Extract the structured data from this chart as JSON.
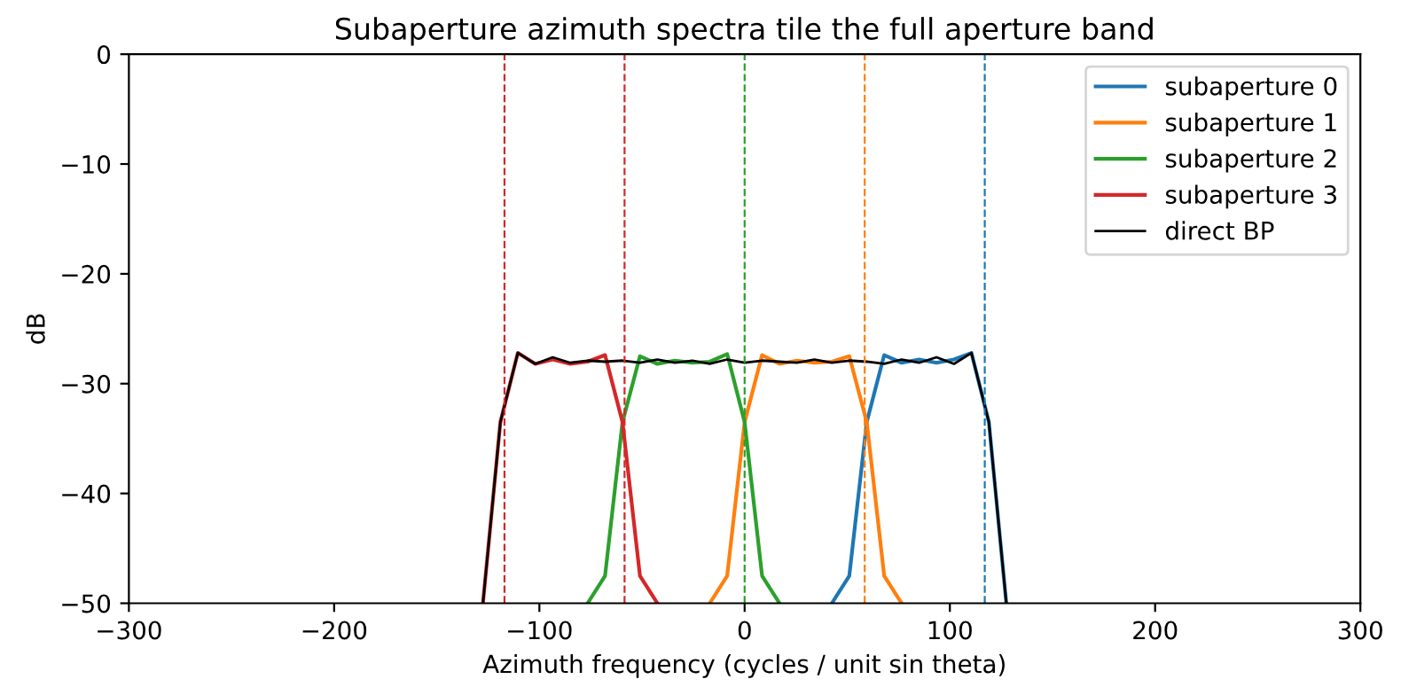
{
  "chart_data": {
    "type": "line",
    "title": "Subaperture azimuth spectra tile the full aperture band",
    "xlabel": "Azimuth frequency (cycles / unit sin theta)",
    "ylabel": "dB",
    "xlim": [
      -300,
      300
    ],
    "ylim": [
      -50,
      0
    ],
    "xticks": [
      -300,
      -200,
      -100,
      0,
      100,
      200,
      300
    ],
    "yticks": [
      -50,
      -40,
      -30,
      -20,
      -10,
      0
    ],
    "grid": false,
    "legend": "top right",
    "marker": "none",
    "line_style": "solid",
    "series": [
      {
        "name": "subaperture 0",
        "color": "#1f77b4",
        "x": [
          42.5,
          51,
          59.5,
          68,
          76.5,
          85,
          93.5,
          102,
          110.5,
          119,
          127.5
        ],
        "values": [
          -50,
          -47.5,
          -33.5,
          -27.4,
          -28.1,
          -27.8,
          -28.1,
          -27.8,
          -27.2,
          -33.5,
          -50
        ]
      },
      {
        "name": "subaperture 1",
        "color": "#ff7f0e",
        "x": [
          -17,
          -8.5,
          0,
          8.5,
          17,
          25.5,
          34,
          42.5,
          51,
          59.5,
          68,
          76.5
        ],
        "values": [
          -50,
          -47.5,
          -33.5,
          -27.4,
          -28.2,
          -27.9,
          -28.1,
          -28.0,
          -27.5,
          -33.5,
          -47.5,
          -50
        ]
      },
      {
        "name": "subaperture 2",
        "color": "#2ca02c",
        "x": [
          -76.5,
          -68,
          -59.5,
          -51,
          -42.5,
          -34,
          -25.5,
          -17,
          -8.5,
          0,
          8.5,
          17
        ],
        "values": [
          -50,
          -47.5,
          -33.5,
          -27.5,
          -28.2,
          -27.9,
          -28.1,
          -28.0,
          -27.3,
          -33.5,
          -47.5,
          -50
        ]
      },
      {
        "name": "subaperture 3",
        "color": "#d62728",
        "x": [
          -127.5,
          -119,
          -110.5,
          -102,
          -93.5,
          -85,
          -76.5,
          -68,
          -59.5,
          -51,
          -42.5
        ],
        "values": [
          -50,
          -33.5,
          -27.2,
          -28.2,
          -27.8,
          -28.2,
          -28.0,
          -27.4,
          -33.5,
          -47.5,
          -50
        ]
      },
      {
        "name": "direct BP",
        "color": "#000000",
        "x": [
          -127.5,
          -119,
          -110.5,
          -102,
          -93.5,
          -85,
          -76.5,
          -68,
          -59.5,
          -51,
          -42.5,
          -34,
          -25.5,
          -17,
          -8.5,
          0,
          8.5,
          17,
          25.5,
          34,
          42.5,
          51,
          59.5,
          68,
          76.5,
          85,
          93.5,
          102,
          110.5,
          119,
          127.5
        ],
        "values": [
          -50,
          -33.5,
          -27.2,
          -28.2,
          -27.6,
          -28.1,
          -27.9,
          -28.0,
          -27.9,
          -28.1,
          -27.8,
          -28.1,
          -27.9,
          -28.2,
          -27.8,
          -28.1,
          -27.9,
          -28.0,
          -28.1,
          -27.8,
          -28.1,
          -27.9,
          -28.0,
          -28.2,
          -27.8,
          -28.1,
          -27.6,
          -28.2,
          -27.2,
          -33.5,
          -50
        ]
      }
    ],
    "ref_lines": [
      {
        "axis": "x",
        "value": -117,
        "color": "#d62728",
        "line_style": "dashed"
      },
      {
        "axis": "x",
        "value": -58.5,
        "color": "#d62728",
        "line_style": "dashed"
      },
      {
        "axis": "x",
        "value": 0,
        "color": "#2ca02c",
        "line_style": "dashed"
      },
      {
        "axis": "x",
        "value": 58.5,
        "color": "#ff7f0e",
        "line_style": "dashed"
      },
      {
        "axis": "x",
        "value": 117,
        "color": "#1f77b4",
        "line_style": "dashed"
      }
    ]
  }
}
